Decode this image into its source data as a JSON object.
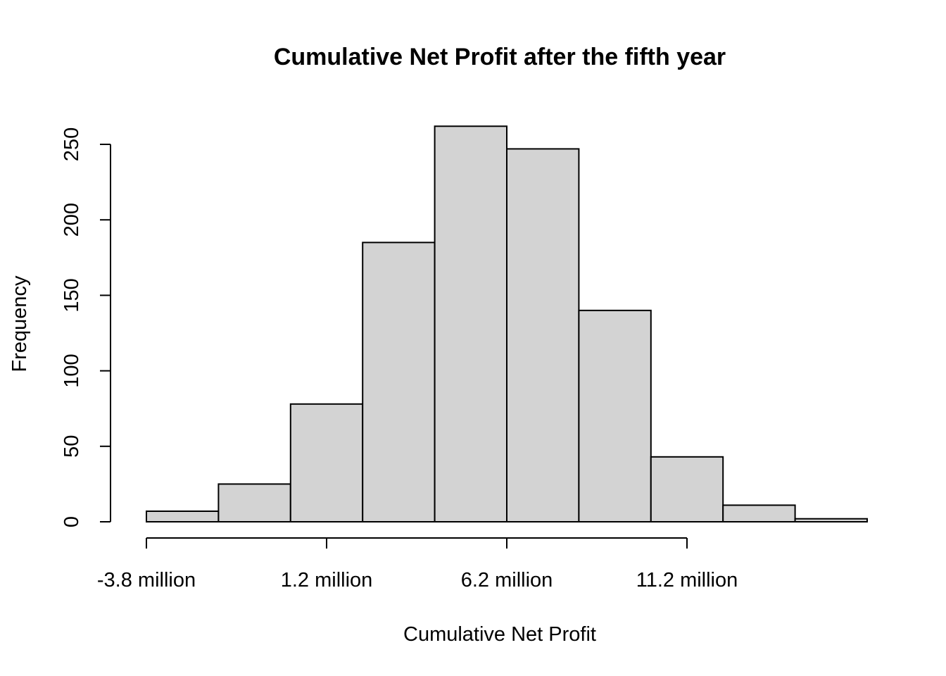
{
  "chart_data": {
    "type": "bar",
    "title": "Cumulative Net Profit after the fifth year",
    "xlabel": "Cumulative Net Profit",
    "ylabel": "Frequency",
    "bin_edges": [
      -3.8,
      -1.8,
      0.2,
      2.2,
      4.2,
      6.2,
      8.2,
      10.2,
      12.2,
      14.2,
      16.2
    ],
    "values": [
      7,
      25,
      78,
      185,
      262,
      247,
      140,
      43,
      11,
      2
    ],
    "xticks": [
      -3.8,
      1.2,
      6.2,
      11.2
    ],
    "xtick_labels": [
      "-3.8 million",
      "1.2 million",
      "6.2 million",
      "11.2 million"
    ],
    "xlim": [
      -3.8,
      11.2
    ],
    "yticks": [
      0,
      50,
      100,
      150,
      200,
      250
    ],
    "ytick_labels": [
      "0",
      "50",
      "100",
      "150",
      "200",
      "250"
    ],
    "ylim": [
      0,
      250
    ],
    "bar_fill": "#d3d3d3",
    "grid": false
  }
}
